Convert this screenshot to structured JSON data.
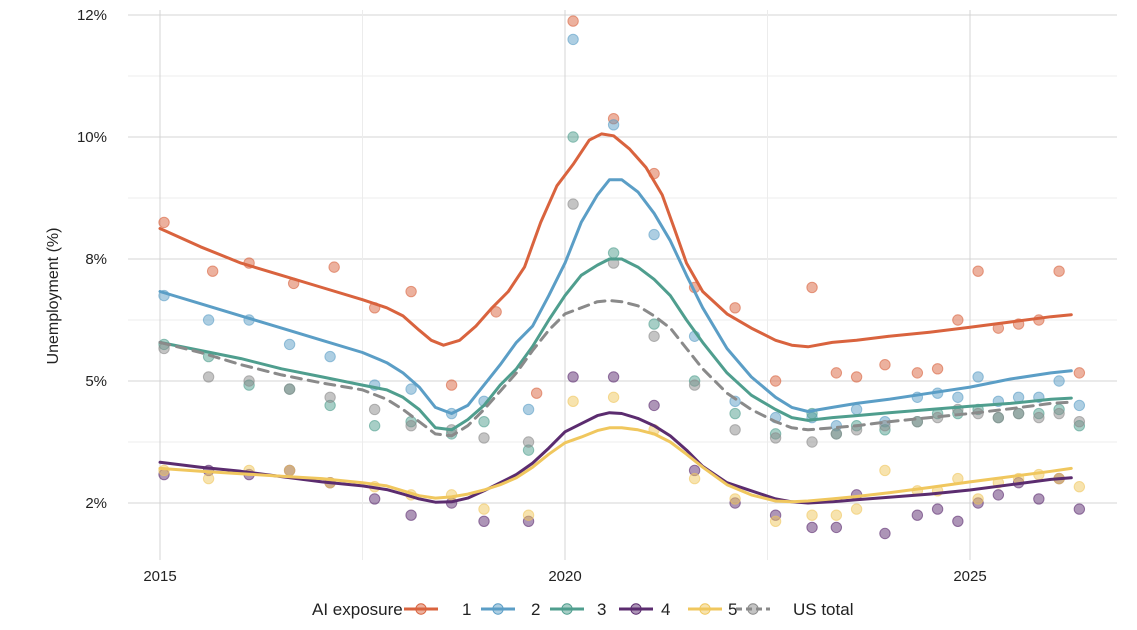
{
  "chart_data": {
    "type": "line",
    "title": "",
    "xlabel": "",
    "ylabel": "Unemployment (%)",
    "x_ticks": [
      2015,
      2020,
      2025
    ],
    "x_tick_labels": [
      "2015",
      "2020",
      "2025"
    ],
    "y_ticks": [
      2,
      5,
      8,
      10,
      12
    ],
    "y_tick_labels": [
      "2%",
      "5%",
      "8%",
      "10%",
      "12%"
    ],
    "xlim": [
      2014.4,
      2026.9
    ],
    "grid": true,
    "legend": {
      "title": "AI exposure",
      "placement": "bottom",
      "entries": [
        "1",
        "2",
        "3",
        "4",
        "5",
        "US total"
      ]
    },
    "series": [
      {
        "name": "1",
        "color": "#d9633e",
        "x": [
          2015.05,
          2015.65,
          2016.1,
          2016.65,
          2017.15,
          2017.65,
          2018.1,
          2018.6,
          2019.15,
          2019.65,
          2020.1,
          2020.6,
          2021.1,
          2021.6,
          2022.1,
          2022.6,
          2023.05,
          2023.35,
          2023.6,
          2023.95,
          2024.35,
          2024.6,
          2024.85,
          2025.1,
          2025.35,
          2025.6,
          2025.85,
          2026.1,
          2026.35
        ],
        "y": [
          8.6,
          7.7,
          7.9,
          7.4,
          7.8,
          6.8,
          7.2,
          4.9,
          6.7,
          4.7,
          11.9,
          10.3,
          9.4,
          7.3,
          6.8,
          5.0,
          7.3,
          5.2,
          5.1,
          5.4,
          5.2,
          5.3,
          6.5,
          7.7,
          6.3,
          6.4,
          6.5,
          7.7,
          5.2
        ],
        "fit_x": [
          2015.0,
          2015.5,
          2016.0,
          2016.5,
          2017.0,
          2017.5,
          2017.8,
          2018.0,
          2018.2,
          2018.35,
          2018.5,
          2018.7,
          2018.9,
          2019.1,
          2019.3,
          2019.5,
          2019.7,
          2019.9,
          2020.1,
          2020.3,
          2020.45,
          2020.6,
          2020.8,
          2021.0,
          2021.2,
          2021.35,
          2021.5,
          2021.7,
          2022.0,
          2022.3,
          2022.6,
          2022.8,
          2023.0,
          2023.3,
          2023.6,
          2024.0,
          2024.5,
          2025.0,
          2025.5,
          2026.0,
          2026.25
        ],
        "fit_y": [
          8.5,
          8.2,
          7.9,
          7.6,
          7.3,
          7.0,
          6.8,
          6.6,
          6.25,
          6.0,
          5.88,
          6.0,
          6.35,
          6.8,
          7.2,
          7.8,
          8.6,
          9.2,
          9.55,
          9.95,
          10.05,
          10.02,
          9.8,
          9.5,
          9.05,
          8.5,
          7.9,
          7.2,
          6.65,
          6.3,
          6.0,
          5.88,
          5.84,
          5.95,
          6.0,
          6.1,
          6.2,
          6.32,
          6.45,
          6.58,
          6.63
        ]
      },
      {
        "name": "2",
        "color": "#5b9ec6",
        "x": [
          2015.05,
          2015.6,
          2016.1,
          2016.6,
          2017.1,
          2017.65,
          2018.1,
          2018.6,
          2019.0,
          2019.55,
          2020.1,
          2020.6,
          2021.1,
          2021.6,
          2022.1,
          2022.6,
          2023.05,
          2023.35,
          2023.6,
          2023.95,
          2024.35,
          2024.6,
          2024.85,
          2025.1,
          2025.35,
          2025.6,
          2025.85,
          2026.1,
          2026.35
        ],
        "y": [
          7.1,
          6.5,
          6.5,
          5.9,
          5.6,
          4.9,
          4.8,
          4.2,
          4.5,
          4.3,
          11.6,
          10.2,
          8.4,
          6.1,
          4.5,
          4.1,
          4.1,
          3.9,
          4.3,
          4.0,
          4.6,
          4.7,
          4.6,
          5.1,
          4.5,
          4.6,
          4.6,
          5.0,
          4.4
        ],
        "fit_x": [
          2015.0,
          2015.5,
          2016.0,
          2016.5,
          2017.0,
          2017.5,
          2017.8,
          2018.0,
          2018.2,
          2018.4,
          2018.6,
          2018.8,
          2019.0,
          2019.2,
          2019.4,
          2019.6,
          2019.8,
          2020.0,
          2020.2,
          2020.4,
          2020.55,
          2020.7,
          2020.9,
          2021.1,
          2021.3,
          2021.5,
          2021.7,
          2022.0,
          2022.3,
          2022.6,
          2022.8,
          2023.0,
          2023.3,
          2023.6,
          2024.0,
          2024.5,
          2025.0,
          2025.5,
          2026.0,
          2026.25
        ],
        "fit_y": [
          7.2,
          6.9,
          6.6,
          6.3,
          6.0,
          5.7,
          5.45,
          5.2,
          4.85,
          4.35,
          4.2,
          4.4,
          4.9,
          5.4,
          5.95,
          6.35,
          7.1,
          7.9,
          8.6,
          9.05,
          9.3,
          9.3,
          9.1,
          8.75,
          8.3,
          7.6,
          6.8,
          5.8,
          5.1,
          4.6,
          4.35,
          4.25,
          4.35,
          4.45,
          4.55,
          4.7,
          4.85,
          5.05,
          5.2,
          5.25
        ]
      },
      {
        "name": "3",
        "color": "#4f9e8e",
        "x": [
          2015.05,
          2015.6,
          2016.1,
          2016.6,
          2017.1,
          2017.65,
          2018.1,
          2018.6,
          2019.0,
          2019.55,
          2020.1,
          2020.6,
          2021.1,
          2021.6,
          2022.1,
          2022.6,
          2023.05,
          2023.35,
          2023.6,
          2023.95,
          2024.35,
          2024.6,
          2024.85,
          2025.1,
          2025.35,
          2025.6,
          2025.85,
          2026.1,
          2026.35
        ],
        "y": [
          5.9,
          5.6,
          4.9,
          4.8,
          4.4,
          3.9,
          4.0,
          3.7,
          4.0,
          3.3,
          10.0,
          8.1,
          6.4,
          5.0,
          4.2,
          3.7,
          4.2,
          3.7,
          3.9,
          3.8,
          4.0,
          4.2,
          4.2,
          4.3,
          4.1,
          4.2,
          4.2,
          4.3,
          3.9
        ],
        "fit_x": [
          2015.0,
          2015.5,
          2016.0,
          2016.5,
          2017.0,
          2017.5,
          2017.8,
          2018.0,
          2018.2,
          2018.4,
          2018.6,
          2018.8,
          2019.0,
          2019.2,
          2019.4,
          2019.6,
          2019.8,
          2020.0,
          2020.2,
          2020.4,
          2020.55,
          2020.7,
          2020.9,
          2021.1,
          2021.3,
          2021.5,
          2021.7,
          2022.0,
          2022.3,
          2022.6,
          2022.8,
          2023.0,
          2023.3,
          2023.6,
          2024.0,
          2024.5,
          2025.0,
          2025.5,
          2026.0,
          2026.25
        ],
        "fit_y": [
          5.95,
          5.75,
          5.55,
          5.3,
          5.1,
          4.9,
          4.78,
          4.6,
          4.3,
          3.85,
          3.8,
          4.05,
          4.4,
          4.9,
          5.3,
          5.85,
          6.5,
          7.1,
          7.6,
          7.85,
          8.0,
          8.0,
          7.8,
          7.5,
          7.1,
          6.5,
          5.95,
          5.2,
          4.65,
          4.3,
          4.1,
          4.03,
          4.1,
          4.15,
          4.22,
          4.3,
          4.38,
          4.45,
          4.55,
          4.58
        ]
      },
      {
        "name": "4",
        "color": "#5b2c6f",
        "x": [
          2015.05,
          2015.6,
          2016.1,
          2016.6,
          2017.1,
          2017.65,
          2018.1,
          2018.6,
          2019.0,
          2019.55,
          2020.1,
          2020.6,
          2021.1,
          2021.6,
          2022.1,
          2022.6,
          2023.05,
          2023.35,
          2023.6,
          2023.95,
          2024.35,
          2024.6,
          2024.85,
          2025.1,
          2025.35,
          2025.6,
          2025.85,
          2026.1,
          2026.35
        ],
        "y": [
          2.7,
          2.8,
          2.7,
          2.8,
          2.5,
          2.1,
          1.8,
          2.0,
          1.7,
          1.7,
          5.1,
          5.1,
          4.4,
          2.8,
          2.0,
          1.8,
          1.6,
          1.6,
          2.2,
          1.5,
          1.8,
          1.9,
          1.7,
          2.0,
          2.2,
          2.5,
          2.1,
          2.6,
          1.9
        ],
        "fit_x": [
          2015.0,
          2015.5,
          2016.0,
          2016.5,
          2017.0,
          2017.5,
          2017.8,
          2018.0,
          2018.2,
          2018.4,
          2018.6,
          2018.8,
          2019.0,
          2019.2,
          2019.4,
          2019.6,
          2019.8,
          2020.0,
          2020.2,
          2020.4,
          2020.55,
          2020.7,
          2020.9,
          2021.1,
          2021.3,
          2021.5,
          2021.7,
          2022.0,
          2022.3,
          2022.6,
          2022.8,
          2023.0,
          2023.3,
          2023.6,
          2024.0,
          2024.5,
          2025.0,
          2025.5,
          2026.0,
          2026.25
        ],
        "fit_y": [
          3.0,
          2.88,
          2.78,
          2.65,
          2.52,
          2.42,
          2.33,
          2.22,
          2.1,
          2.02,
          2.03,
          2.12,
          2.3,
          2.5,
          2.7,
          2.98,
          3.35,
          3.75,
          3.95,
          4.15,
          4.22,
          4.2,
          4.08,
          3.9,
          3.65,
          3.3,
          2.9,
          2.5,
          2.3,
          2.1,
          2.03,
          2.0,
          2.03,
          2.08,
          2.14,
          2.22,
          2.32,
          2.45,
          2.58,
          2.62
        ]
      },
      {
        "name": "5",
        "color": "#f0c75e",
        "x": [
          2015.05,
          2015.6,
          2016.1,
          2016.6,
          2017.1,
          2017.65,
          2018.1,
          2018.6,
          2019.0,
          2019.55,
          2020.1,
          2020.6,
          2021.1,
          2021.6,
          2022.1,
          2022.6,
          2023.05,
          2023.35,
          2023.6,
          2023.95,
          2024.35,
          2024.6,
          2024.85,
          2025.1,
          2025.35,
          2025.6,
          2025.85,
          2026.1,
          2026.35
        ],
        "y": [
          2.8,
          2.6,
          2.8,
          2.8,
          2.5,
          2.4,
          2.2,
          2.2,
          1.9,
          1.8,
          4.5,
          4.6,
          3.8,
          2.6,
          2.1,
          1.7,
          1.8,
          1.8,
          1.9,
          2.8,
          2.3,
          2.3,
          2.6,
          2.1,
          2.5,
          2.6,
          2.7,
          2.6,
          2.4
        ],
        "fit_x": [
          2015.0,
          2015.5,
          2016.0,
          2016.5,
          2017.0,
          2017.5,
          2017.8,
          2018.0,
          2018.2,
          2018.4,
          2018.6,
          2018.8,
          2019.0,
          2019.2,
          2019.4,
          2019.6,
          2019.8,
          2020.0,
          2020.2,
          2020.4,
          2020.55,
          2020.7,
          2020.9,
          2021.1,
          2021.3,
          2021.5,
          2021.7,
          2022.0,
          2022.3,
          2022.6,
          2022.8,
          2023.0,
          2023.3,
          2023.6,
          2024.0,
          2024.5,
          2025.0,
          2025.5,
          2026.0,
          2026.25
        ],
        "fit_y": [
          2.85,
          2.78,
          2.72,
          2.66,
          2.6,
          2.5,
          2.42,
          2.3,
          2.18,
          2.12,
          2.15,
          2.22,
          2.32,
          2.45,
          2.62,
          2.88,
          3.2,
          3.48,
          3.62,
          3.78,
          3.85,
          3.85,
          3.8,
          3.7,
          3.5,
          3.2,
          2.88,
          2.45,
          2.2,
          2.05,
          2.03,
          2.05,
          2.1,
          2.16,
          2.25,
          2.38,
          2.52,
          2.65,
          2.78,
          2.85
        ]
      },
      {
        "name": "US total",
        "color": "#8a8a8a",
        "x": [
          2015.05,
          2015.6,
          2016.1,
          2016.6,
          2017.1,
          2017.65,
          2018.1,
          2018.6,
          2019.0,
          2019.55,
          2020.1,
          2020.6,
          2021.1,
          2021.6,
          2022.1,
          2022.6,
          2023.05,
          2023.35,
          2023.6,
          2023.95,
          2024.35,
          2024.6,
          2024.85,
          2025.1,
          2025.35,
          2025.6,
          2025.85,
          2026.1,
          2026.35
        ],
        "y": [
          5.8,
          5.1,
          5.0,
          4.8,
          4.6,
          4.3,
          3.9,
          3.8,
          3.6,
          3.5,
          8.9,
          7.9,
          6.1,
          4.9,
          3.8,
          3.6,
          3.5,
          3.7,
          3.8,
          3.9,
          4.0,
          4.1,
          4.3,
          4.2,
          4.1,
          4.2,
          4.1,
          4.2,
          4.0
        ],
        "fit_x": [
          2015.0,
          2015.5,
          2016.0,
          2016.5,
          2017.0,
          2017.5,
          2017.8,
          2018.0,
          2018.2,
          2018.4,
          2018.6,
          2018.8,
          2019.0,
          2019.2,
          2019.4,
          2019.6,
          2019.8,
          2020.0,
          2020.2,
          2020.4,
          2020.55,
          2020.7,
          2020.9,
          2021.1,
          2021.3,
          2021.5,
          2021.7,
          2022.0,
          2022.3,
          2022.6,
          2022.8,
          2023.0,
          2023.3,
          2023.6,
          2024.0,
          2024.5,
          2025.0,
          2025.5,
          2026.0,
          2026.25
        ],
        "fit_y": [
          5.95,
          5.7,
          5.4,
          5.15,
          4.95,
          4.78,
          4.55,
          4.3,
          4.0,
          3.7,
          3.65,
          3.9,
          4.3,
          4.75,
          5.2,
          5.75,
          6.25,
          6.65,
          6.8,
          6.95,
          6.98,
          6.95,
          6.85,
          6.6,
          6.3,
          5.8,
          5.3,
          4.7,
          4.3,
          4.0,
          3.85,
          3.8,
          3.85,
          3.9,
          4.0,
          4.1,
          4.2,
          4.32,
          4.45,
          4.48
        ]
      }
    ]
  }
}
